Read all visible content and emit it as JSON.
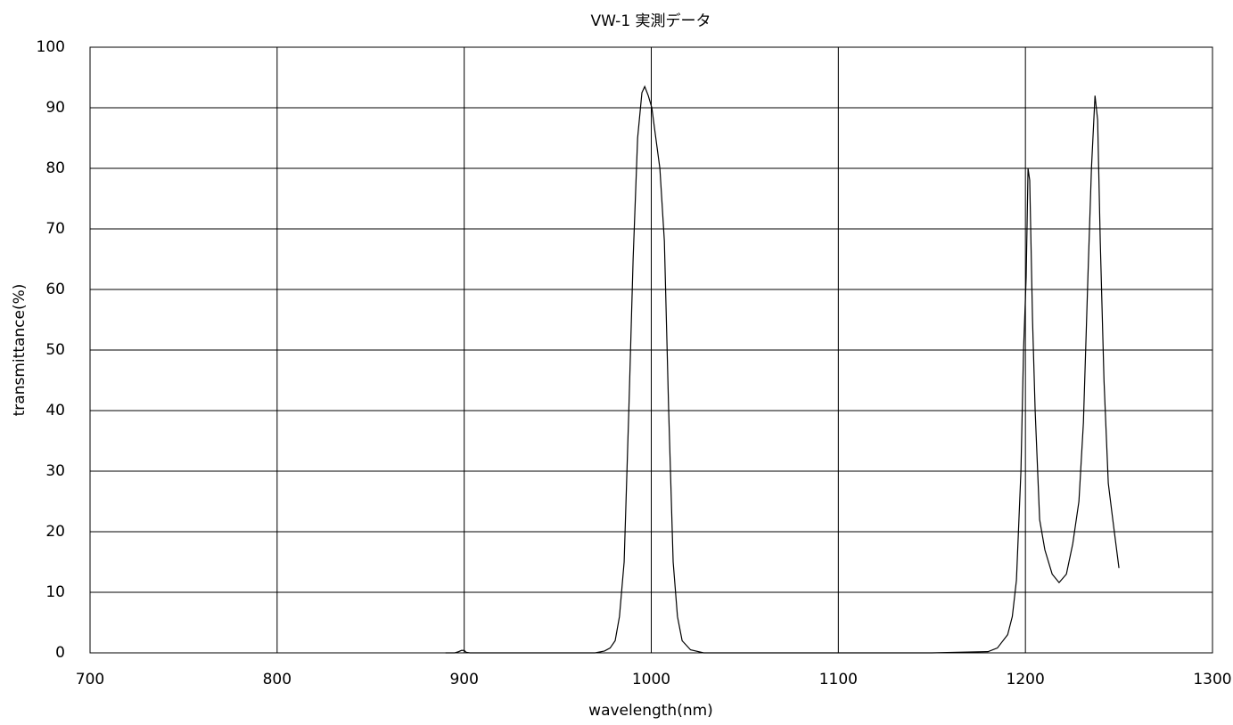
{
  "chart_data": {
    "type": "line",
    "title": "VW-1 実測データ",
    "x_label": "wavelength(nm)",
    "y_label": "transmittance(%)",
    "xlim": [
      700,
      1300
    ],
    "xticks": [
      700,
      800,
      900,
      1000,
      1100,
      1200,
      1300
    ],
    "ylim": [
      0,
      100
    ],
    "yticks": [
      0,
      10,
      20,
      30,
      40,
      50,
      60,
      70,
      80,
      90,
      100
    ],
    "grid": true,
    "series": [
      {
        "color": "#000000",
        "x": [
          890,
          895,
          897,
          898.5,
          900,
          901,
          903,
          910,
          930,
          950,
          970,
          975,
          978,
          980.7,
          983,
          985.5,
          988,
          990.3,
          992.7,
          995,
          996.5,
          998.4,
          1000.3,
          1002,
          1004.6,
          1007,
          1009.3,
          1011.7,
          1014,
          1016.5,
          1021,
          1028,
          1060,
          1100,
          1150,
          1180,
          1185,
          1190.5,
          1193,
          1195.2,
          1197.6,
          1199,
          1200.4,
          1201.4,
          1202.3,
          1203.8,
          1205.2,
          1207.6,
          1210.4,
          1214.3,
          1218,
          1221.9,
          1225.3,
          1228.6,
          1231,
          1233.4,
          1235.3,
          1237.2,
          1238.6,
          1240,
          1242,
          1244.3,
          1246.7,
          1250
        ],
        "values": [
          0,
          0,
          0.2,
          0.4,
          0.4,
          0.1,
          0,
          0,
          0,
          0,
          0,
          0.3,
          0.8,
          2,
          6,
          15,
          40,
          65,
          85,
          92.5,
          93.5,
          92,
          90,
          86,
          80,
          68,
          40,
          15,
          6,
          2,
          0.5,
          0,
          0,
          0,
          0,
          0.2,
          0.8,
          3,
          6,
          12,
          30,
          50,
          62,
          80,
          78,
          55,
          40,
          22,
          17,
          13,
          11.6,
          13,
          18,
          25,
          38,
          62,
          80,
          92,
          88,
          68,
          45,
          28,
          22,
          14
        ]
      }
    ]
  }
}
